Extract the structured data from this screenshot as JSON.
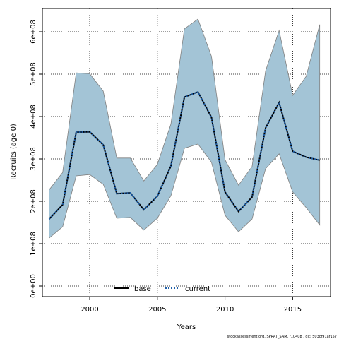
{
  "chart_data": {
    "type": "line",
    "xlabel": "Years",
    "ylabel": "Recruits (age 0)",
    "xlim": [
      1996.5,
      2017.8
    ],
    "ylim": [
      -25000000.0,
      655000000.0
    ],
    "x_ticks": [
      2000,
      2005,
      2010,
      2015
    ],
    "x_tick_labels": [
      "2000",
      "2005",
      "2010",
      "2015"
    ],
    "y_ticks": [
      0,
      100000000,
      200000000,
      300000000,
      400000000,
      500000000,
      600000000
    ],
    "y_tick_labels": [
      "0e+00",
      "1e+08",
      "2e+08",
      "3e+08",
      "4e+08",
      "5e+08",
      "6e+08"
    ],
    "grid": true,
    "legend_position": "bottom",
    "x": [
      1997,
      1998,
      1999,
      2000,
      2001,
      2002,
      2003,
      2004,
      2005,
      2006,
      2007,
      2008,
      2009,
      2010,
      2011,
      2012,
      2013,
      2014,
      2015,
      2016,
      2017
    ],
    "band": {
      "color": "#a3c4d6",
      "border_color": "#808080",
      "upper": [
        227000000,
        268000000,
        503000000,
        501000000,
        460000000,
        302000000,
        302000000,
        248000000,
        287000000,
        382000000,
        607000000,
        630000000,
        542000000,
        298000000,
        238000000,
        282000000,
        508000000,
        603000000,
        450000000,
        495000000,
        617000000
      ],
      "lower": [
        113000000,
        140000000,
        260000000,
        263000000,
        240000000,
        160000000,
        162000000,
        132000000,
        160000000,
        213000000,
        325000000,
        335000000,
        292000000,
        167000000,
        128000000,
        158000000,
        277000000,
        312000000,
        222000000,
        185000000,
        144000000
      ]
    },
    "series": [
      {
        "name": "base",
        "color": "#000000",
        "dash": "solid",
        "values": [
          158000000,
          192000000,
          363000000,
          364000000,
          333000000,
          218000000,
          220000000,
          180000000,
          212000000,
          283000000,
          446000000,
          458000000,
          398000000,
          222000000,
          176000000,
          210000000,
          373000000,
          433000000,
          318000000,
          304000000,
          297000000
        ]
      },
      {
        "name": "current",
        "color": "#1f5fa8",
        "dash": "dotted",
        "values": [
          158000000,
          192000000,
          363000000,
          364000000,
          333000000,
          218000000,
          220000000,
          180000000,
          212000000,
          283000000,
          446000000,
          458000000,
          398000000,
          222000000,
          176000000,
          210000000,
          373000000,
          433000000,
          318000000,
          304000000,
          297000000
        ]
      }
    ]
  },
  "footer": "stockassessment.org, SPRAT_SAM, r10408 , git: 503cf91af157"
}
